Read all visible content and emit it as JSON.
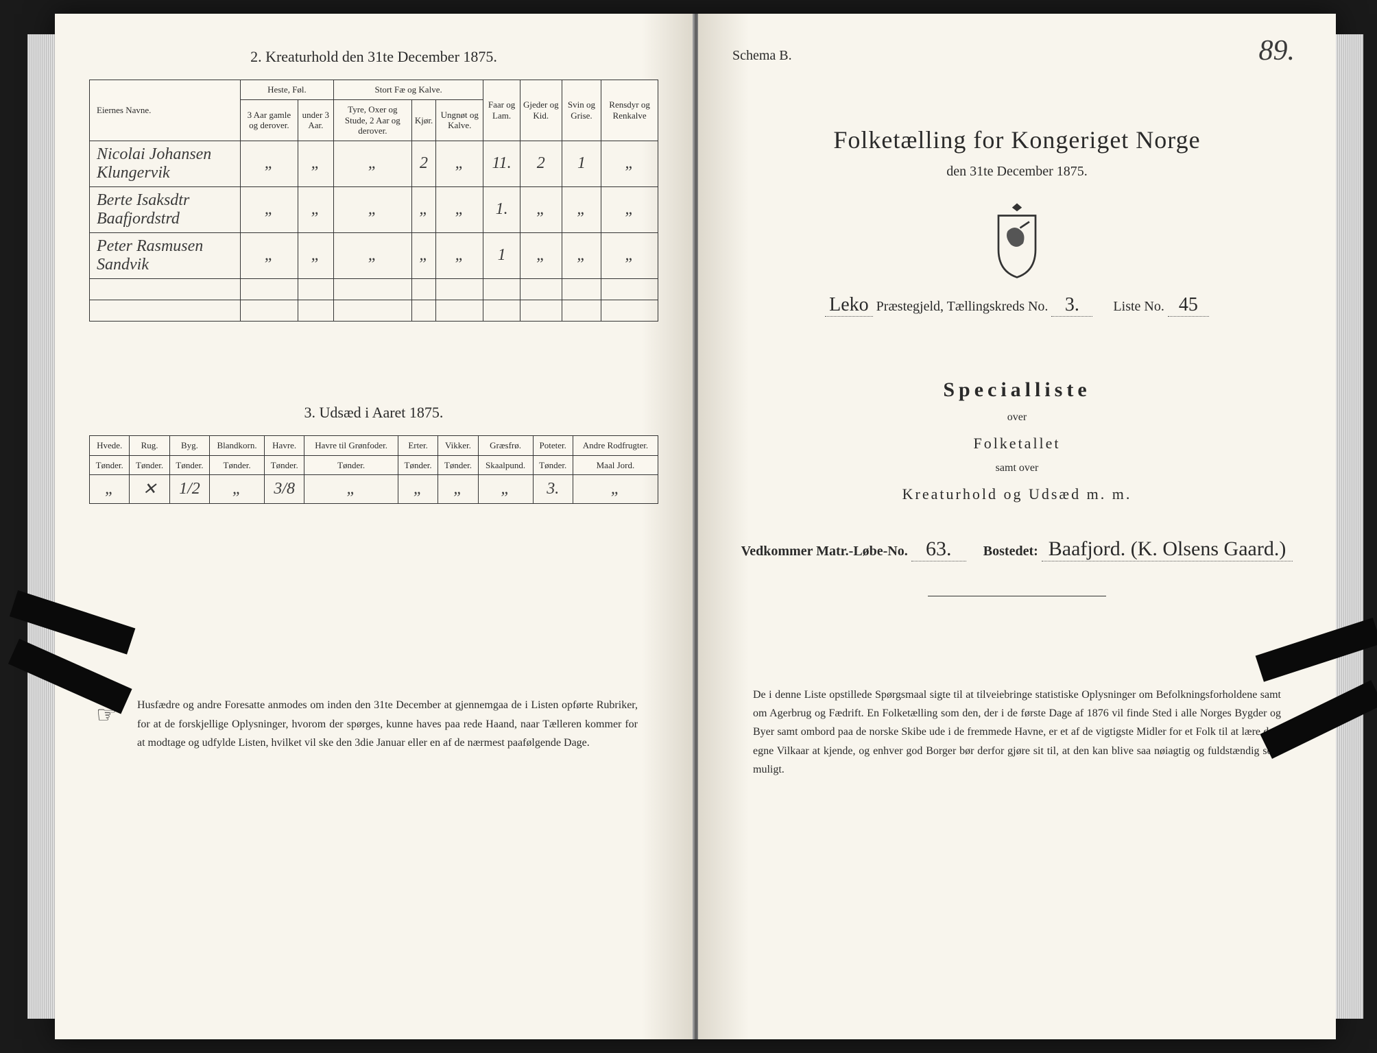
{
  "left": {
    "section2_title": "2.  Kreaturhold den 31te December 1875.",
    "table2": {
      "headers": {
        "eiernes_navne": "Eiernes Navne.",
        "heste_fol": "Heste, Føl.",
        "stort_fae": "Stort Fæ og Kalve.",
        "faar_lam": "Faar og Lam.",
        "gjeder_kid": "Gjeder og Kid.",
        "svin_grise": "Svin og Grise.",
        "rensdyr": "Rensdyr og Renkalve",
        "sub_3aar": "3 Aar gamle og derover.",
        "sub_under3": "under 3 Aar.",
        "sub_tyre": "Tyre, Oxer og Stude, 2 Aar og derover.",
        "sub_kjor": "Kjør.",
        "sub_ungnot": "Ungnøt og Kalve."
      },
      "rows": [
        {
          "name": "Nicolai Johansen Klungervik",
          "h1": "„",
          "h2": "„",
          "s1": "„",
          "s2": "2",
          "s3": "„",
          "faar": "11.",
          "gjed": "2",
          "svin": "1",
          "ren": "„"
        },
        {
          "name": "Berte Isaksdtr Baafjordstrd",
          "h1": "„",
          "h2": "„",
          "s1": "„",
          "s2": "„",
          "s3": "„",
          "faar": "1.",
          "gjed": "„",
          "svin": "„",
          "ren": "„"
        },
        {
          "name": "Peter Rasmusen Sandvik",
          "h1": "„",
          "h2": "„",
          "s1": "„",
          "s2": "„",
          "s3": "„",
          "faar": "1",
          "gjed": "„",
          "svin": "„",
          "ren": "„"
        }
      ]
    },
    "section3_title": "3.  Udsæd i Aaret 1875.",
    "table3": {
      "headers": [
        "Hvede.",
        "Rug.",
        "Byg.",
        "Blandkorn.",
        "Havre.",
        "Havre til Grønfoder.",
        "Erter.",
        "Vikker.",
        "Græsfrø.",
        "Poteter.",
        "Andre Rodfrugter."
      ],
      "subhead": "Tønder.",
      "subhead_grasfro": "Skaalpund.",
      "subhead_andre": "Maal Jord.",
      "row": [
        "„",
        "✕",
        "1/2",
        "„",
        "3/8",
        "„",
        "„",
        "„",
        "„",
        "3.",
        "„"
      ]
    },
    "footnote": "Husfædre og andre Foresatte anmodes om inden den 31te December at gjennemgaa de i Listen opførte Rubriker, for at de forskjellige Oplysninger, hvorom der spørges, kunne haves paa rede Haand, naar Tælleren kommer for at modtage og udfylde Listen, hvilket vil ske den 3die Januar eller en af de nærmest paafølgende Dage."
  },
  "right": {
    "schema": "Schema B.",
    "page_no": "89.",
    "title": "Folketælling for Kongeriget Norge",
    "subtitle": "den 31te December 1875.",
    "parish_line_a": "Leko",
    "parish_label": " Præstegjeld, Tællingskreds No. ",
    "kreds_no": "3.",
    "liste_label": "Liste No.",
    "liste_no": "45",
    "spec_title": "Specialliste",
    "over": "over",
    "folketallet": "Folketallet",
    "samt_over": "samt over",
    "kreatur": "Kreaturhold og Udsæd m. m.",
    "vedk_label_a": "Vedkommer Matr.-Løbe-No.",
    "matr_no": "63.",
    "bostedet_label": "Bostedet:",
    "bostedet": "Baafjord. (K. Olsens Gaard.)",
    "footnote": "De i denne Liste opstillede Spørgsmaal sigte til at tilveiebringe statistiske Oplysninger om Befolkningsforholdene samt om Agerbrug og Fædrift. En Folketælling som den, der i de første Dage af 1876 vil finde Sted i alle Norges Bygder og Byer samt ombord paa de norske Skibe ude i de fremmede Havne, er et af de vigtigste Midler for et Folk til at lære dets egne Vilkaar at kjende, og enhver god Borger bør derfor gjøre sit til, at den kan blive saa nøiagtig og fuldstændig som muligt."
  },
  "colors": {
    "paper": "#faf7ef",
    "ink": "#2a2a2a",
    "border": "#333333"
  }
}
